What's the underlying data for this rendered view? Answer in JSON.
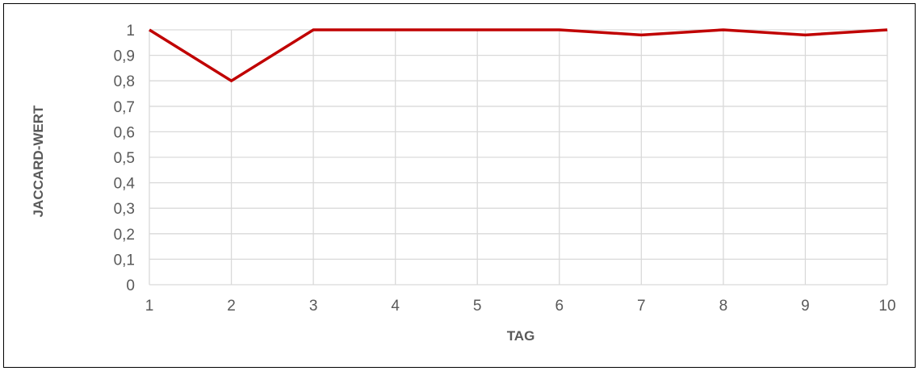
{
  "chart_data": {
    "type": "line",
    "title": "",
    "xlabel": "TAG",
    "ylabel": "JACCARD-WERT",
    "x": [
      1,
      2,
      3,
      4,
      5,
      6,
      7,
      8,
      9,
      10
    ],
    "series": [
      {
        "values": [
          1,
          0.8,
          1,
          1,
          1,
          1,
          0.98,
          1,
          0.98,
          1
        ],
        "color": "#C00000"
      }
    ],
    "xlim": [
      1,
      10
    ],
    "ylim": [
      0,
      1
    ],
    "y_ticks": [
      "0",
      "0,1",
      "0,2",
      "0,3",
      "0,4",
      "0,5",
      "0,6",
      "0,7",
      "0,8",
      "0,9",
      "1"
    ],
    "x_ticks": [
      "1",
      "2",
      "3",
      "4",
      "5",
      "6",
      "7",
      "8",
      "9",
      "10"
    ],
    "grid": true,
    "legend": "none",
    "grid_color": "#D9D9D9",
    "text_color": "#595959"
  }
}
